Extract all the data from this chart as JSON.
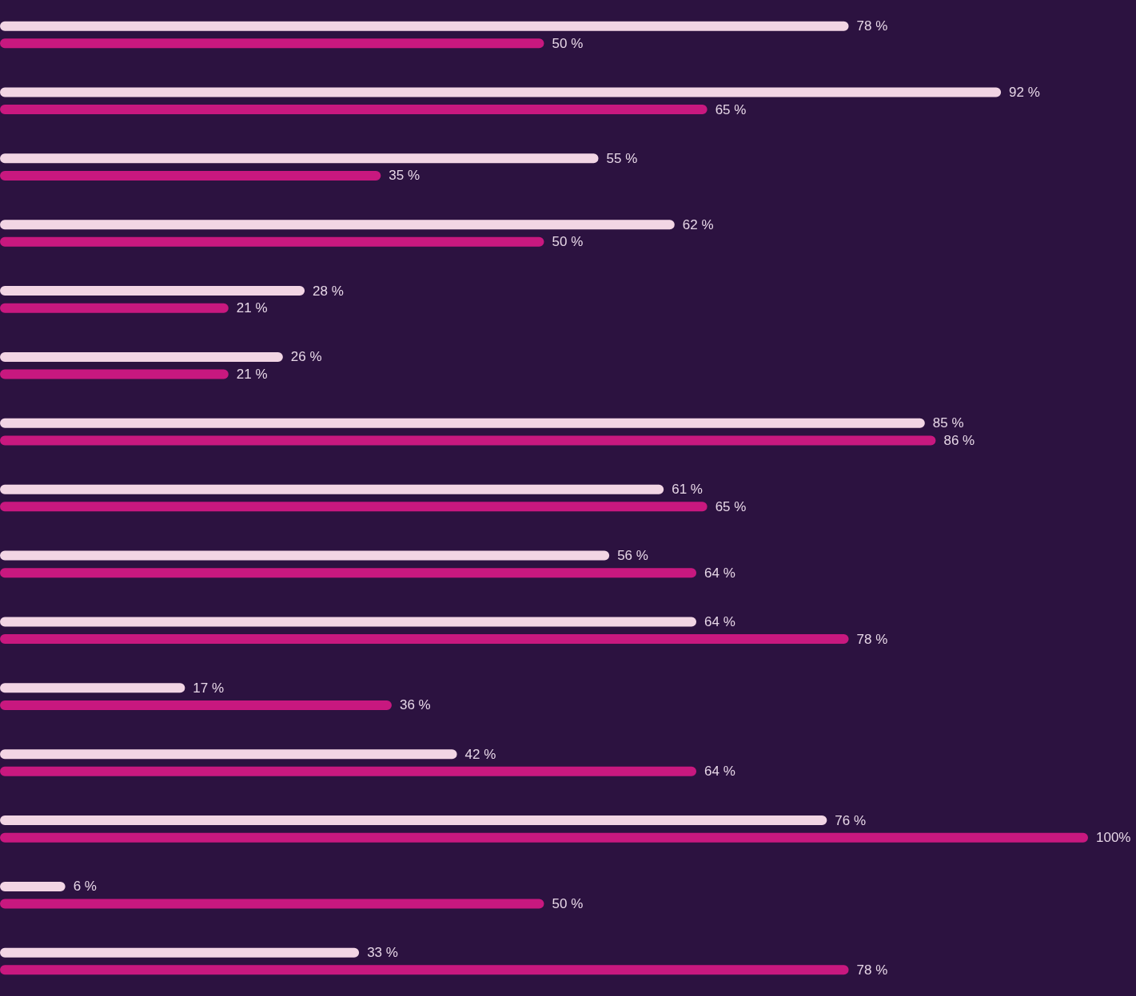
{
  "chart_data": {
    "type": "bar",
    "orientation": "horizontal",
    "categories": [
      null,
      null,
      null,
      null,
      null,
      null,
      null,
      null,
      null,
      null,
      null,
      null,
      null,
      null,
      null
    ],
    "xlim": [
      0,
      100
    ],
    "tick_labels": false,
    "grid": false,
    "series": [
      {
        "color": "#f2d5e4",
        "values": [
          78,
          92,
          55,
          62,
          28,
          26,
          85,
          61,
          56,
          64,
          17,
          42,
          76,
          6,
          33
        ],
        "value_labels": [
          "78 %",
          "92 %",
          "55 %",
          "62 %",
          "28 %",
          "26 %",
          "85 %",
          "61 %",
          "56 %",
          "64 %",
          "17 %",
          "42 %",
          "76 %",
          "6 %",
          "33 %"
        ]
      },
      {
        "color": "#c8187f",
        "values": [
          50,
          65,
          35,
          50,
          21,
          21,
          86,
          65,
          64,
          78,
          36,
          64,
          100,
          50,
          78
        ],
        "value_labels": [
          "50 %",
          "65 %",
          "35 %",
          "50 %",
          "21 %",
          "21 %",
          "86 %",
          "65 %",
          "64 %",
          "78 %",
          "36 %",
          "64 %",
          "100%",
          "50 %",
          "78 %"
        ]
      }
    ]
  }
}
